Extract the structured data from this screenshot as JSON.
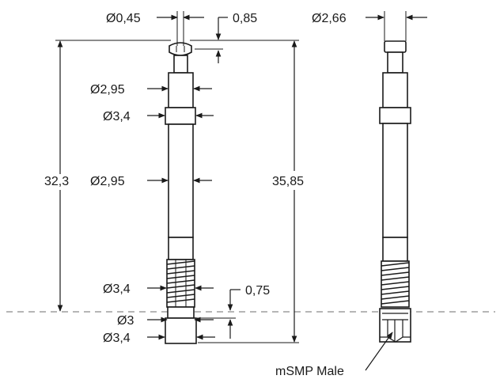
{
  "dimensions": {
    "tip_diameter": "Ø0,45",
    "tip_height": "0,85",
    "top_diameter_right": "Ø2,66",
    "upper_body_diameter": "Ø2,95",
    "collar_diameter": "Ø3,4",
    "overall_length_to_reference": "32,3",
    "middle_body_diameter": "Ø2,95",
    "overall_length": "35,85",
    "spring_diameter": "Ø3,4",
    "reference_offset": "0,75",
    "base_diameter_small": "Ø3",
    "base_diameter_large": "Ø3,4"
  },
  "callout": {
    "connector_label": "mSMP Male"
  }
}
